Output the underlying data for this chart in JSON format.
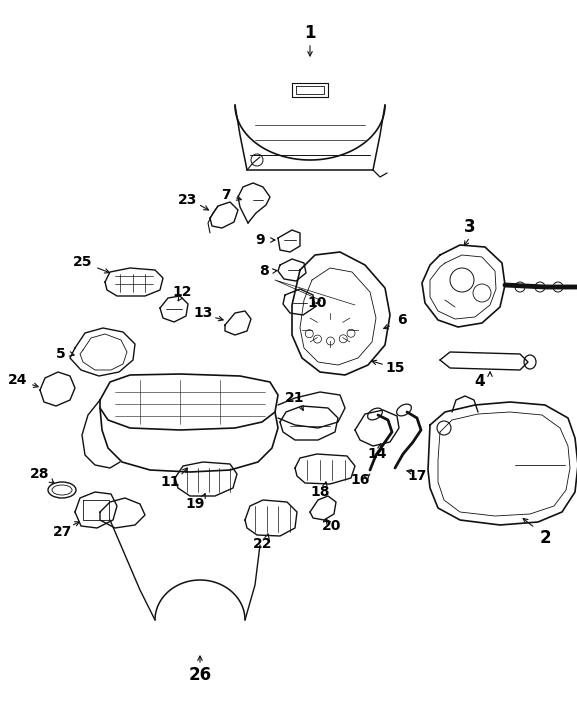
{
  "background_color": "#ffffff",
  "line_color": "#111111",
  "label_color": "#000000",
  "figsize": [
    5.77,
    7.21
  ],
  "dpi": 100,
  "title_font": 10,
  "label_font": 11,
  "lw": 0.9
}
